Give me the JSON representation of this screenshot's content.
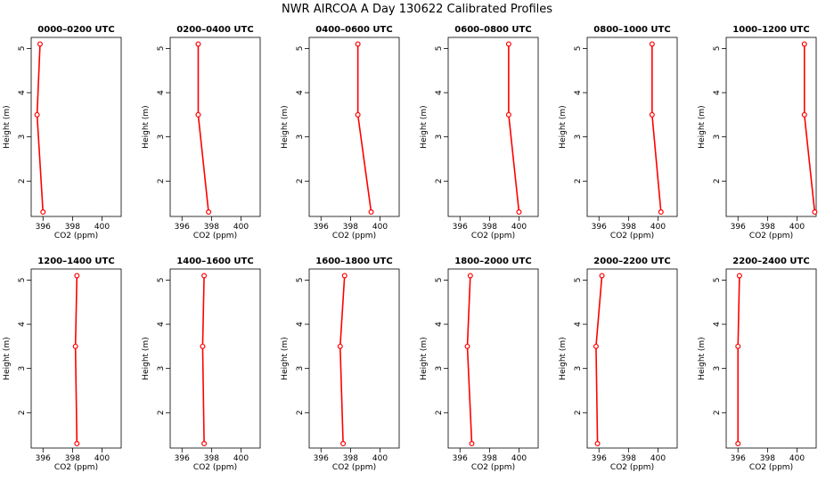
{
  "title": "NWR AIRCOA A  Day 130622  Calibrated Profiles",
  "colors": {
    "series": "#ff0000",
    "axis": "#000000",
    "background": "#ffffff"
  },
  "chart_data": [
    {
      "type": "line",
      "title": "0000–0200 UTC",
      "xlabel": "CO2 (ppm)",
      "ylabel": "Height (m)",
      "x_ticks": [
        396,
        398,
        400
      ],
      "y_ticks": [
        2,
        3,
        4,
        5
      ],
      "xlim": [
        395.2,
        401.3
      ],
      "ylim": [
        1.2,
        5.25
      ],
      "points": [
        {
          "x": 395.8,
          "y": 5.1
        },
        {
          "x": 395.6,
          "y": 3.5
        },
        {
          "x": 396.0,
          "y": 1.3
        }
      ]
    },
    {
      "type": "line",
      "title": "0200–0400 UTC",
      "xlabel": "CO2 (ppm)",
      "ylabel": "Height (m)",
      "x_ticks": [
        396,
        398,
        400
      ],
      "y_ticks": [
        2,
        3,
        4,
        5
      ],
      "xlim": [
        395.2,
        401.3
      ],
      "ylim": [
        1.2,
        5.25
      ],
      "points": [
        {
          "x": 397.1,
          "y": 5.1
        },
        {
          "x": 397.1,
          "y": 3.5
        },
        {
          "x": 397.8,
          "y": 1.3
        }
      ]
    },
    {
      "type": "line",
      "title": "0400–0600 UTC",
      "xlabel": "CO2 (ppm)",
      "ylabel": "Height (m)",
      "x_ticks": [
        396,
        398,
        400
      ],
      "y_ticks": [
        2,
        3,
        4,
        5
      ],
      "xlim": [
        395.2,
        401.3
      ],
      "ylim": [
        1.2,
        5.25
      ],
      "points": [
        {
          "x": 398.5,
          "y": 5.1
        },
        {
          "x": 398.5,
          "y": 3.5
        },
        {
          "x": 399.4,
          "y": 1.3
        }
      ]
    },
    {
      "type": "line",
      "title": "0600–0800 UTC",
      "xlabel": "CO2 (ppm)",
      "ylabel": "Height (m)",
      "x_ticks": [
        396,
        398,
        400
      ],
      "y_ticks": [
        2,
        3,
        4,
        5
      ],
      "xlim": [
        395.2,
        401.3
      ],
      "ylim": [
        1.2,
        5.25
      ],
      "points": [
        {
          "x": 399.3,
          "y": 5.1
        },
        {
          "x": 399.3,
          "y": 3.5
        },
        {
          "x": 400.0,
          "y": 1.3
        }
      ]
    },
    {
      "type": "line",
      "title": "0800–1000 UTC",
      "xlabel": "CO2 (ppm)",
      "ylabel": "Height (m)",
      "x_ticks": [
        396,
        398,
        400
      ],
      "y_ticks": [
        2,
        3,
        4,
        5
      ],
      "xlim": [
        395.2,
        401.3
      ],
      "ylim": [
        1.2,
        5.25
      ],
      "points": [
        {
          "x": 399.6,
          "y": 5.1
        },
        {
          "x": 399.6,
          "y": 3.5
        },
        {
          "x": 400.2,
          "y": 1.3
        }
      ]
    },
    {
      "type": "line",
      "title": "1000–1200 UTC",
      "xlabel": "CO2 (ppm)",
      "ylabel": "Height (m)",
      "x_ticks": [
        396,
        398,
        400
      ],
      "y_ticks": [
        2,
        3,
        4,
        5
      ],
      "xlim": [
        395.2,
        401.3
      ],
      "ylim": [
        1.2,
        5.25
      ],
      "points": [
        {
          "x": 400.5,
          "y": 5.1
        },
        {
          "x": 400.5,
          "y": 3.5
        },
        {
          "x": 401.2,
          "y": 1.3
        }
      ]
    },
    {
      "type": "line",
      "title": "1200–1400 UTC",
      "xlabel": "CO2 (ppm)",
      "ylabel": "Height (m)",
      "x_ticks": [
        396,
        398,
        400
      ],
      "y_ticks": [
        2,
        3,
        4,
        5
      ],
      "xlim": [
        395.2,
        401.3
      ],
      "ylim": [
        1.2,
        5.25
      ],
      "points": [
        {
          "x": 398.3,
          "y": 5.1
        },
        {
          "x": 398.2,
          "y": 3.5
        },
        {
          "x": 398.3,
          "y": 1.3
        }
      ]
    },
    {
      "type": "line",
      "title": "1400–1600 UTC",
      "xlabel": "CO2 (ppm)",
      "ylabel": "Height (m)",
      "x_ticks": [
        396,
        398,
        400
      ],
      "y_ticks": [
        2,
        3,
        4,
        5
      ],
      "xlim": [
        395.2,
        401.3
      ],
      "ylim": [
        1.2,
        5.25
      ],
      "points": [
        {
          "x": 397.5,
          "y": 5.1
        },
        {
          "x": 397.4,
          "y": 3.5
        },
        {
          "x": 397.5,
          "y": 1.3
        }
      ]
    },
    {
      "type": "line",
      "title": "1600–1800 UTC",
      "xlabel": "CO2 (ppm)",
      "ylabel": "Height (m)",
      "x_ticks": [
        396,
        398,
        400
      ],
      "y_ticks": [
        2,
        3,
        4,
        5
      ],
      "xlim": [
        395.2,
        401.3
      ],
      "ylim": [
        1.2,
        5.25
      ],
      "points": [
        {
          "x": 397.6,
          "y": 5.1
        },
        {
          "x": 397.3,
          "y": 3.5
        },
        {
          "x": 397.5,
          "y": 1.3
        }
      ]
    },
    {
      "type": "line",
      "title": "1800–2000 UTC",
      "xlabel": "CO2 (ppm)",
      "ylabel": "Height (m)",
      "x_ticks": [
        396,
        398,
        400
      ],
      "y_ticks": [
        2,
        3,
        4,
        5
      ],
      "xlim": [
        395.2,
        401.3
      ],
      "ylim": [
        1.2,
        5.25
      ],
      "points": [
        {
          "x": 396.7,
          "y": 5.1
        },
        {
          "x": 396.5,
          "y": 3.5
        },
        {
          "x": 396.8,
          "y": 1.3
        }
      ]
    },
    {
      "type": "line",
      "title": "2000–2200 UTC",
      "xlabel": "CO2 (ppm)",
      "ylabel": "Height (m)",
      "x_ticks": [
        396,
        398,
        400
      ],
      "y_ticks": [
        2,
        3,
        4,
        5
      ],
      "xlim": [
        395.2,
        401.3
      ],
      "ylim": [
        1.2,
        5.25
      ],
      "points": [
        {
          "x": 396.2,
          "y": 5.1
        },
        {
          "x": 395.8,
          "y": 3.5
        },
        {
          "x": 395.9,
          "y": 1.3
        }
      ]
    },
    {
      "type": "line",
      "title": "2200–2400 UTC",
      "xlabel": "CO2 (ppm)",
      "ylabel": "Height (m)",
      "x_ticks": [
        396,
        398,
        400
      ],
      "y_ticks": [
        2,
        3,
        4,
        5
      ],
      "xlim": [
        395.2,
        401.3
      ],
      "ylim": [
        1.2,
        5.25
      ],
      "points": [
        {
          "x": 396.1,
          "y": 5.1
        },
        {
          "x": 396.0,
          "y": 3.5
        },
        {
          "x": 396.0,
          "y": 1.3
        }
      ]
    }
  ]
}
